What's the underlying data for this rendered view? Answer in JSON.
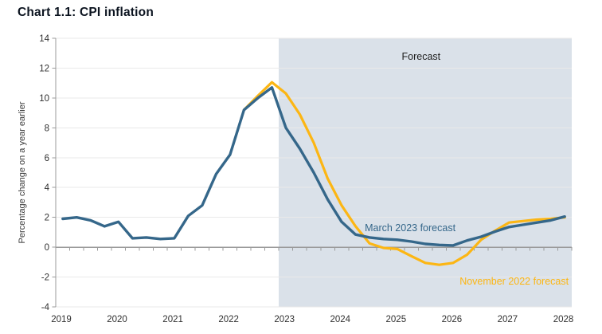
{
  "page": {
    "title": "Chart 1.1: CPI inflation"
  },
  "colors": {
    "march_line": "#35678a",
    "november_line": "#fcb614",
    "forecast_shade": "#dae1e9",
    "grid": "#e9e9e9",
    "axis": "#9b9b9b",
    "tick_text": "#303030",
    "title_text": "#0c1420",
    "forecast_label_text": "#1d1d1d"
  },
  "chart_data": {
    "type": "line",
    "title": "Chart 1.1: CPI inflation",
    "xlabel": "",
    "ylabel": "Percentage change on a year earlier",
    "xlim": [
      2019,
      2028.25
    ],
    "ylim": [
      -4,
      14
    ],
    "yticks": [
      14,
      12,
      10,
      8,
      6,
      4,
      2,
      0,
      -2,
      -4
    ],
    "xticks": [
      2019,
      2020,
      2021,
      2022,
      2023,
      2024,
      2025,
      2026,
      2027,
      2028
    ],
    "minor_xtick_interval": 0.25,
    "grid": "horizontal",
    "legend_position": "inline-annotations",
    "forecast_region": {
      "start": 2023,
      "end": 2028.25,
      "label": "Forecast"
    },
    "series": [
      {
        "name": "November 2022 forecast",
        "color": "#fcb614",
        "width": 3.2,
        "x": [
          2022.375,
          2022.625,
          2022.875,
          2023.125,
          2023.375,
          2023.625,
          2023.875,
          2024.125,
          2024.375,
          2024.625,
          2024.875,
          2025.125,
          2025.375,
          2025.625,
          2025.875,
          2026.125,
          2026.375,
          2026.625,
          2026.875,
          2027.125,
          2027.375,
          2027.625,
          2027.875,
          2028.125
        ],
        "values": [
          9.2,
          10.15,
          11.05,
          10.3,
          8.9,
          7.0,
          4.6,
          2.8,
          1.4,
          0.25,
          -0.05,
          -0.12,
          -0.6,
          -1.05,
          -1.18,
          -1.05,
          -0.5,
          0.5,
          1.1,
          1.65,
          1.75,
          1.85,
          1.9,
          2.0
        ]
      },
      {
        "name": "March 2023 forecast",
        "color": "#35678a",
        "width": 3.4,
        "x": [
          2019.125,
          2019.375,
          2019.625,
          2019.875,
          2020.125,
          2020.375,
          2020.625,
          2020.875,
          2021.125,
          2021.375,
          2021.625,
          2021.875,
          2022.125,
          2022.375,
          2022.625,
          2022.875,
          2023.125,
          2023.375,
          2023.625,
          2023.875,
          2024.125,
          2024.375,
          2024.625,
          2024.875,
          2025.125,
          2025.375,
          2025.625,
          2025.875,
          2026.125,
          2026.375,
          2026.625,
          2026.875,
          2027.125,
          2027.375,
          2027.625,
          2027.875,
          2028.125
        ],
        "values": [
          1.9,
          2.0,
          1.8,
          1.4,
          1.7,
          0.6,
          0.65,
          0.55,
          0.6,
          2.1,
          2.8,
          4.9,
          6.2,
          9.2,
          10.0,
          10.7,
          8.0,
          6.6,
          5.0,
          3.2,
          1.7,
          0.85,
          0.65,
          0.55,
          0.5,
          0.38,
          0.22,
          0.15,
          0.12,
          0.45,
          0.7,
          1.05,
          1.35,
          1.5,
          1.65,
          1.8,
          2.05
        ]
      }
    ],
    "annotations": [
      {
        "text": "Forecast",
        "x": 2025.55,
        "y": 12.55,
        "color": "#1d1d1d",
        "anchor": "middle",
        "size": 12.5
      },
      {
        "text": "March 2023 forecast",
        "x": 2024.54,
        "y": 1.08,
        "color": "#35678a",
        "anchor": "start",
        "size": 12.5
      },
      {
        "text": "November 2022 forecast",
        "x": 2026.24,
        "y": -2.5,
        "color": "#fcb614",
        "anchor": "start",
        "size": 12.5
      }
    ]
  }
}
